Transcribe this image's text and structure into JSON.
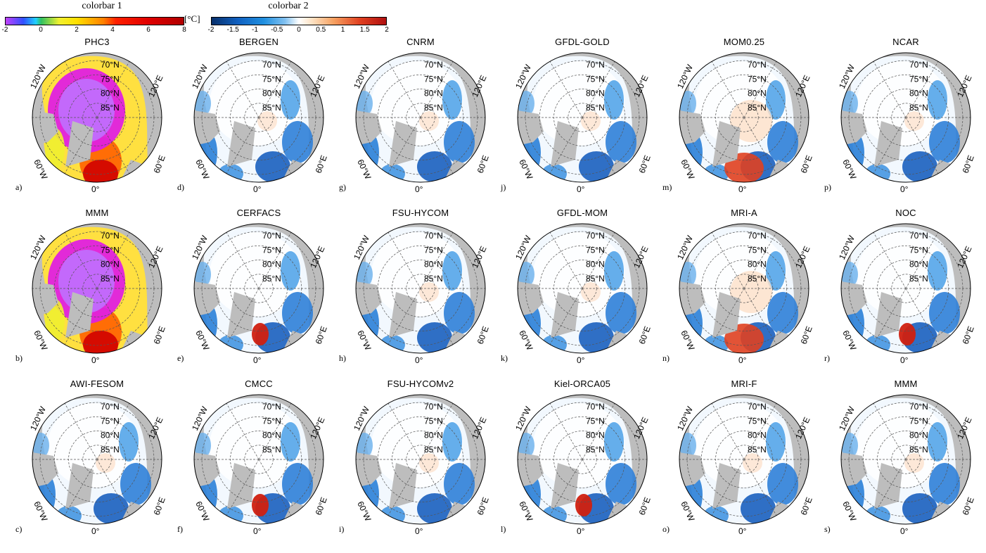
{
  "colorbar1": {
    "title": "colorbar 1",
    "unit": "[°C]",
    "ticks": [
      "-2",
      "0",
      "2",
      "4",
      "6",
      "8"
    ],
    "min": -2,
    "max": 8
  },
  "colorbar2": {
    "title": "colorbar 2",
    "ticks": [
      "-2",
      "-1.5",
      "-1",
      "-0.5",
      "0",
      "0.5",
      "1",
      "1.5",
      "2"
    ],
    "min": -2,
    "max": 2
  },
  "map_labels": {
    "lat": [
      "70°N",
      "75°N",
      "80°N",
      "85°N"
    ],
    "lon_left_top": "120°W",
    "lon_right_top": "120°E",
    "lon_left_bottom": "60°W",
    "lon_right_bottom": "60°E",
    "lon_bottom": "0°"
  },
  "panels": [
    {
      "title": "PHC3",
      "letter": "a)",
      "bar": 1,
      "style": "abs"
    },
    {
      "title": "MMM",
      "letter": "b)",
      "bar": 1,
      "style": "abs"
    },
    {
      "title": "AWI-FESOM",
      "letter": "c)",
      "bar": 2,
      "style": "cool"
    },
    {
      "title": "BERGEN",
      "letter": "d)",
      "bar": 2,
      "style": "cool"
    },
    {
      "title": "CERFACS",
      "letter": "e)",
      "bar": 2,
      "style": "mixed"
    },
    {
      "title": "CMCC",
      "letter": "f)",
      "bar": 2,
      "style": "mixed"
    },
    {
      "title": "CNRM",
      "letter": "g)",
      "bar": 2,
      "style": "cool"
    },
    {
      "title": "FSU-HYCOM",
      "letter": "h)",
      "bar": 2,
      "style": "cool"
    },
    {
      "title": "FSU-HYCOMv2",
      "letter": "i)",
      "bar": 2,
      "style": "cool"
    },
    {
      "title": "GFDL-GOLD",
      "letter": "j)",
      "bar": 2,
      "style": "cool"
    },
    {
      "title": "GFDL-MOM",
      "letter": "k)",
      "bar": 2,
      "style": "cool"
    },
    {
      "title": "Kiel-ORCA05",
      "letter": "l)",
      "bar": 2,
      "style": "mixed"
    },
    {
      "title": "MOM0.25",
      "letter": "m)",
      "bar": 2,
      "style": "warm"
    },
    {
      "title": "MRI-A",
      "letter": "n)",
      "bar": 2,
      "style": "warm"
    },
    {
      "title": "MRI-F",
      "letter": "o)",
      "bar": 2,
      "style": "cool"
    },
    {
      "title": "NCAR",
      "letter": "p)",
      "bar": 2,
      "style": "cool"
    },
    {
      "title": "NOC",
      "letter": "r)",
      "bar": 2,
      "style": "mixed"
    },
    {
      "title": "MMM",
      "letter": "s)",
      "bar": 2,
      "style": "cool"
    }
  ]
}
